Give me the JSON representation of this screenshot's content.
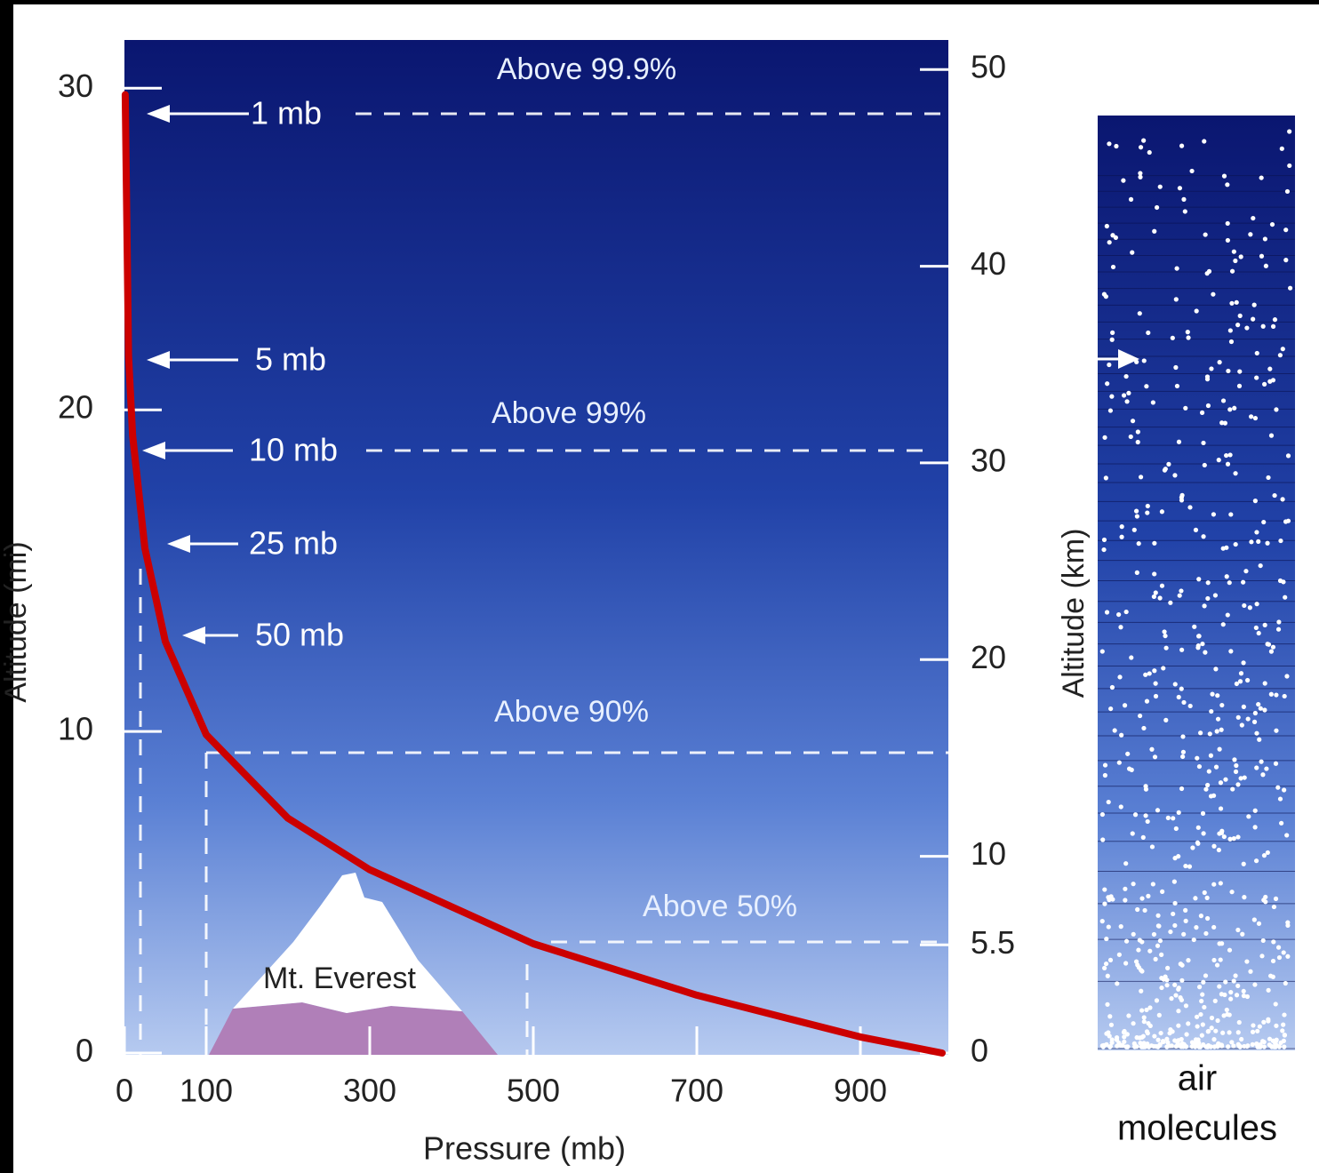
{
  "chart_data": {
    "type": "line",
    "xlabel": "Pressure (mb)",
    "ylabel": "Altitude (mi)",
    "y2label": "Altitude (km)",
    "x": [
      1000,
      900,
      700,
      500,
      300,
      200,
      100,
      50,
      25,
      10,
      5,
      1
    ],
    "values": [
      0,
      0.5,
      1.8,
      3.4,
      5.7,
      7.3,
      9.9,
      12.8,
      15.7,
      19.2,
      21.7,
      29.8
    ],
    "color": "#cc0000",
    "xlim": [
      0,
      1000
    ],
    "xticks": [
      0,
      100,
      300,
      500,
      700,
      900
    ],
    "ylim": [
      0,
      31.5
    ],
    "yticks": [
      0,
      10,
      20,
      30
    ],
    "y2lim": [
      0,
      51.5
    ],
    "y2ticks": [
      0,
      5.5,
      10,
      20,
      30,
      40,
      50
    ],
    "annotations": [
      "1 mb",
      "5 mb",
      "10 mb",
      "25 mb",
      "50 mb"
    ],
    "levels": [
      "Above 99.9%",
      "Above 99%",
      "Above 90%",
      "Above 50%"
    ],
    "mountain_label": "Mt. Everest",
    "panel_label": [
      "air",
      "molecules"
    ]
  }
}
